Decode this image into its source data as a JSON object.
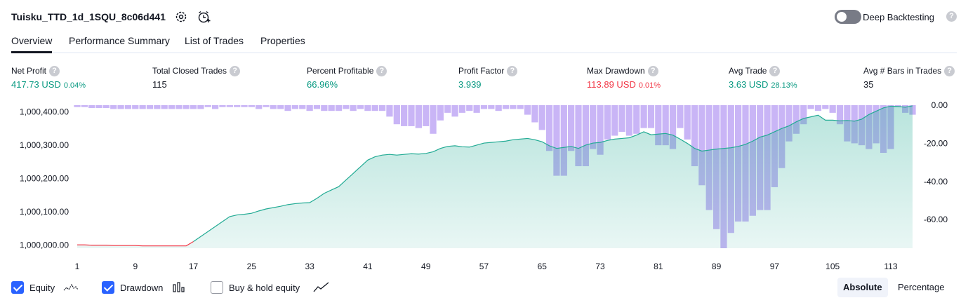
{
  "header": {
    "strategy_name": "Tuisku_TTD_1d_1SQU_8c06d441",
    "settings_icon": "gear-icon",
    "alert_icon": "add-alert-clock-icon",
    "deep_backtesting_label": "Deep Backtesting",
    "deep_backtesting_enabled": false,
    "help_icon": "question-icon",
    "help_glyph": "?"
  },
  "tabs": [
    {
      "label": "Overview",
      "active": true
    },
    {
      "label": "Performance Summary",
      "active": false
    },
    {
      "label": "List of Trades",
      "active": false
    },
    {
      "label": "Properties",
      "active": false
    }
  ],
  "metrics": [
    {
      "label": "Net Profit",
      "value": "417.73 USD",
      "pct": "0.04%",
      "tone": "pos"
    },
    {
      "label": "Total Closed Trades",
      "value": "115",
      "pct": "",
      "tone": "plain"
    },
    {
      "label": "Percent Profitable",
      "value": "66.96%",
      "pct": "",
      "tone": "pos"
    },
    {
      "label": "Profit Factor",
      "value": "3.939",
      "pct": "",
      "tone": "pos"
    },
    {
      "label": "Max Drawdown",
      "value": "113.89 USD",
      "pct": "0.01%",
      "tone": "neg"
    },
    {
      "label": "Avg Trade",
      "value": "3.63 USD",
      "pct": "28.13%",
      "tone": "pos"
    },
    {
      "label": "Avg # Bars in Trades",
      "value": "35",
      "pct": "",
      "tone": "plain"
    }
  ],
  "chart_data": {
    "type": "area",
    "x_ticks": [
      "1",
      "9",
      "17",
      "25",
      "33",
      "41",
      "49",
      "57",
      "65",
      "73",
      "81",
      "89",
      "97",
      "105",
      "113"
    ],
    "y_left_ticks": [
      "1,000,000.00",
      "1,000,100.00",
      "1,000,200.00",
      "1,000,300.00",
      "1,000,400.00"
    ],
    "y_right_ticks": [
      "0.00",
      "-20.00",
      "-40.00",
      "-60.00"
    ],
    "y_left_range": [
      999990,
      1000420
    ],
    "y_right_range": [
      -75,
      0
    ],
    "x_range": [
      1,
      116
    ],
    "colors": {
      "equity_line": "#22ab94",
      "equity_fill": "#22ab94",
      "equity_negative": "#f23645",
      "drawdown": "#b79cf3"
    },
    "series": [
      {
        "name": "Equity",
        "x": [
          1,
          2,
          3,
          4,
          5,
          6,
          7,
          8,
          9,
          10,
          11,
          12,
          13,
          14,
          15,
          16,
          17,
          18,
          19,
          20,
          21,
          22,
          23,
          24,
          25,
          26,
          27,
          28,
          29,
          30,
          31,
          32,
          33,
          34,
          35,
          36,
          37,
          38,
          39,
          40,
          41,
          42,
          43,
          44,
          45,
          46,
          47,
          48,
          49,
          50,
          51,
          52,
          53,
          54,
          55,
          56,
          57,
          58,
          59,
          60,
          61,
          62,
          63,
          64,
          65,
          66,
          67,
          68,
          69,
          70,
          71,
          72,
          73,
          74,
          75,
          76,
          77,
          78,
          79,
          80,
          81,
          82,
          83,
          84,
          85,
          86,
          87,
          88,
          89,
          90,
          91,
          92,
          93,
          94,
          95,
          96,
          97,
          98,
          99,
          100,
          101,
          102,
          103,
          104,
          105,
          106,
          107,
          108,
          109,
          110,
          111,
          112,
          113,
          114,
          115,
          116
        ],
        "values": [
          1000000,
          1000000,
          999999,
          999999,
          999999,
          999998,
          999998,
          999998,
          999998,
          999997,
          999997,
          999997,
          999997,
          999997,
          999997,
          999997,
          1000010,
          1000025,
          1000040,
          1000055,
          1000070,
          1000085,
          1000090,
          1000092,
          1000095,
          1000102,
          1000108,
          1000112,
          1000116,
          1000121,
          1000124,
          1000126,
          1000127,
          1000140,
          1000155,
          1000165,
          1000175,
          1000195,
          1000215,
          1000235,
          1000255,
          1000265,
          1000270,
          1000272,
          1000270,
          1000272,
          1000274,
          1000273,
          1000275,
          1000280,
          1000290,
          1000296,
          1000298,
          1000295,
          1000294,
          1000300,
          1000306,
          1000308,
          1000310,
          1000312,
          1000316,
          1000318,
          1000320,
          1000316,
          1000310,
          1000298,
          1000290,
          1000293,
          1000296,
          1000290,
          1000300,
          1000306,
          1000308,
          1000314,
          1000318,
          1000320,
          1000322,
          1000330,
          1000340,
          1000331,
          1000333,
          1000335,
          1000330,
          1000318,
          1000305,
          1000290,
          1000282,
          1000285,
          1000288,
          1000290,
          1000292,
          1000296,
          1000302,
          1000312,
          1000324,
          1000330,
          1000340,
          1000350,
          1000358,
          1000370,
          1000380,
          1000385,
          1000390,
          1000375,
          1000375,
          1000373,
          1000374,
          1000372,
          1000378,
          1000392,
          1000402,
          1000412,
          1000417,
          1000416,
          1000414,
          1000418
        ]
      },
      {
        "name": "Drawdown",
        "x": [
          1,
          2,
          3,
          4,
          5,
          6,
          7,
          8,
          9,
          10,
          11,
          12,
          13,
          14,
          15,
          16,
          17,
          18,
          19,
          20,
          21,
          22,
          23,
          24,
          25,
          26,
          27,
          28,
          29,
          30,
          31,
          32,
          33,
          34,
          35,
          36,
          37,
          38,
          39,
          40,
          41,
          42,
          43,
          44,
          45,
          46,
          47,
          48,
          49,
          50,
          51,
          52,
          53,
          54,
          55,
          56,
          57,
          58,
          59,
          60,
          61,
          62,
          63,
          64,
          65,
          66,
          67,
          68,
          69,
          70,
          71,
          72,
          73,
          74,
          75,
          76,
          77,
          78,
          79,
          80,
          81,
          82,
          83,
          84,
          85,
          86,
          87,
          88,
          89,
          90,
          91,
          92,
          93,
          94,
          95,
          96,
          97,
          98,
          99,
          100,
          101,
          102,
          103,
          104,
          105,
          106,
          107,
          108,
          109,
          110,
          111,
          112,
          113,
          114,
          115,
          116
        ],
        "values": [
          -1,
          -1,
          -1.5,
          -1.5,
          -1.5,
          -2,
          -2,
          -2,
          -2,
          -2,
          -2,
          -2,
          -2,
          -2,
          -2,
          -2,
          -2,
          -2,
          -1,
          -2,
          -1,
          -1,
          -1,
          -1,
          -1,
          -2,
          -1,
          -2,
          -2,
          -3,
          -2,
          -2,
          -3,
          -2,
          -3,
          -3,
          -3,
          -2,
          -3,
          -2,
          -3,
          -3,
          -3,
          -6,
          -10,
          -11,
          -11,
          -12,
          -11,
          -15,
          -8,
          -4,
          -6,
          -4,
          -3,
          -4,
          -2,
          -2,
          -3,
          -2,
          -2,
          -2,
          -5,
          -9,
          -13,
          -24,
          -37,
          -37,
          -24,
          -32,
          -32,
          -23,
          -26,
          -18,
          -16,
          -14,
          -16,
          -15,
          -12,
          -12,
          -21,
          -21,
          -23,
          -12,
          -18,
          -32,
          -42,
          -55,
          -65,
          -75,
          -67,
          -61,
          -61,
          -58,
          -55,
          -55,
          -43,
          -33,
          -19,
          -15,
          -10,
          -2,
          -3,
          -2,
          -4,
          -10,
          -19,
          -20,
          -21,
          -23,
          -20,
          -25,
          -23,
          -1,
          -4,
          -5
        ]
      }
    ]
  },
  "legend": [
    {
      "label": "Equity",
      "checked": true,
      "icon": "equity-line-icon"
    },
    {
      "label": "Drawdown",
      "checked": true,
      "icon": "drawdown-bars-icon"
    },
    {
      "label": "Buy & hold equity",
      "checked": false,
      "icon": "buy-hold-line-icon"
    }
  ],
  "view_mode": {
    "options": [
      "Absolute",
      "Percentage"
    ],
    "selected": "Absolute"
  }
}
